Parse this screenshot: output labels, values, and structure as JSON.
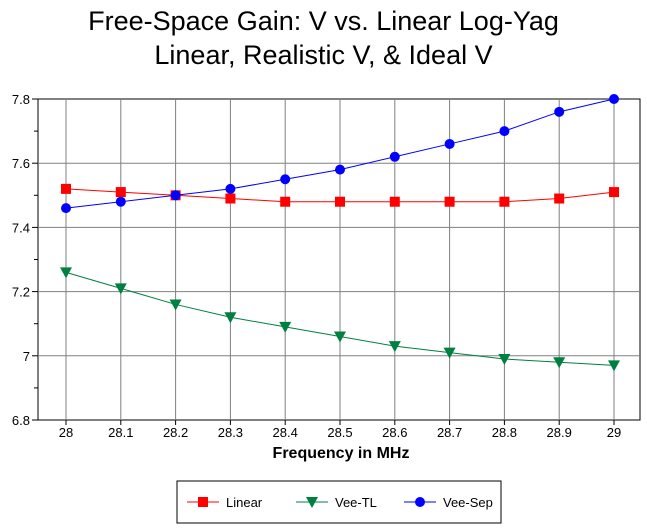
{
  "chart_data": {
    "type": "line",
    "title": [
      "Free-Space Gain:  V vs. Linear Log-Yag",
      "Linear, Realistic V, & Ideal V"
    ],
    "xlabel": "Frequency in MHz",
    "ylabel": "",
    "categories": [
      "28",
      "28.1",
      "28.2",
      "28.3",
      "28.4",
      "28.5",
      "28.6",
      "28.7",
      "28.8",
      "28.9",
      "29"
    ],
    "ylim": [
      6.8,
      7.8
    ],
    "yticks": [
      "7.8",
      "7.6",
      "7.4",
      "7.2",
      "7",
      "6.8"
    ],
    "grid": true,
    "legend_position": "bottom",
    "series": [
      {
        "name": "Linear",
        "color": "#ff0000",
        "marker": "square",
        "values": [
          7.52,
          7.51,
          7.5,
          7.49,
          7.48,
          7.48,
          7.48,
          7.48,
          7.48,
          7.49,
          7.51
        ]
      },
      {
        "name": "Vee-TL",
        "color": "#008040",
        "marker": "triangle-down",
        "values": [
          7.26,
          7.21,
          7.16,
          7.12,
          7.09,
          7.06,
          7.03,
          7.01,
          6.99,
          6.98,
          6.97
        ]
      },
      {
        "name": "Vee-Sep",
        "color": "#0000ff",
        "marker": "circle",
        "values": [
          7.46,
          7.48,
          7.5,
          7.52,
          7.55,
          7.58,
          7.62,
          7.66,
          7.7,
          7.76,
          7.8
        ]
      }
    ]
  }
}
